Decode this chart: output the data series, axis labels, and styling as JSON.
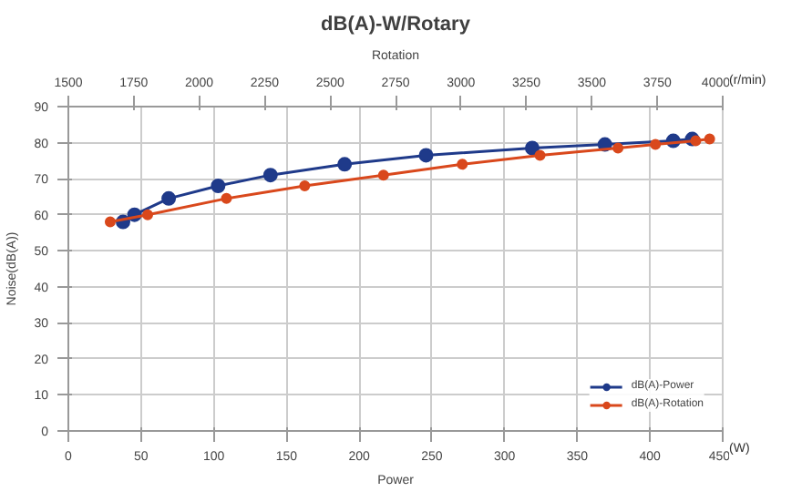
{
  "chart_data": {
    "type": "line",
    "title": "dB(A)-W/Rotary",
    "xlabel": "Power",
    "x2label": "Rotation",
    "ylabel": "Noise(dB(A))",
    "annotations": [
      "(W)",
      "(r/min)"
    ],
    "xlim": [
      0,
      450
    ],
    "xticks": [
      0,
      50,
      100,
      150,
      200,
      250,
      300,
      350,
      400,
      450
    ],
    "x2lim": [
      1500,
      4000
    ],
    "x2ticks": [
      1500,
      1750,
      2000,
      2250,
      2500,
      2750,
      3000,
      3250,
      3500,
      3750,
      4000
    ],
    "ylim": [
      0,
      90
    ],
    "yticks": [
      0,
      10,
      20,
      30,
      40,
      50,
      60,
      70,
      80,
      90
    ],
    "grid": true,
    "legend": "bottom right",
    "marker": "circle",
    "line_style": "solid",
    "series": [
      {
        "name": "dB(A)-Power",
        "color": "#1f3a8a",
        "x": [
          37.6,
          45.5,
          69,
          103,
          139,
          190,
          246,
          319,
          369,
          416,
          429
        ],
        "values": [
          58,
          60,
          64.5,
          68,
          71,
          74,
          76.5,
          78.5,
          79.5,
          80.5,
          81
        ]
      },
      {
        "name": "dB(A)-Rotation",
        "color": "#d9481c",
        "axis": "x2",
        "x": [
          1660,
          1803,
          2104,
          2403,
          2704,
          3005,
          3302,
          3600,
          3743,
          3897,
          3950
        ],
        "values": [
          58,
          60,
          64.5,
          68,
          71,
          74,
          76.5,
          78.5,
          79.5,
          80.5,
          81
        ]
      }
    ]
  }
}
